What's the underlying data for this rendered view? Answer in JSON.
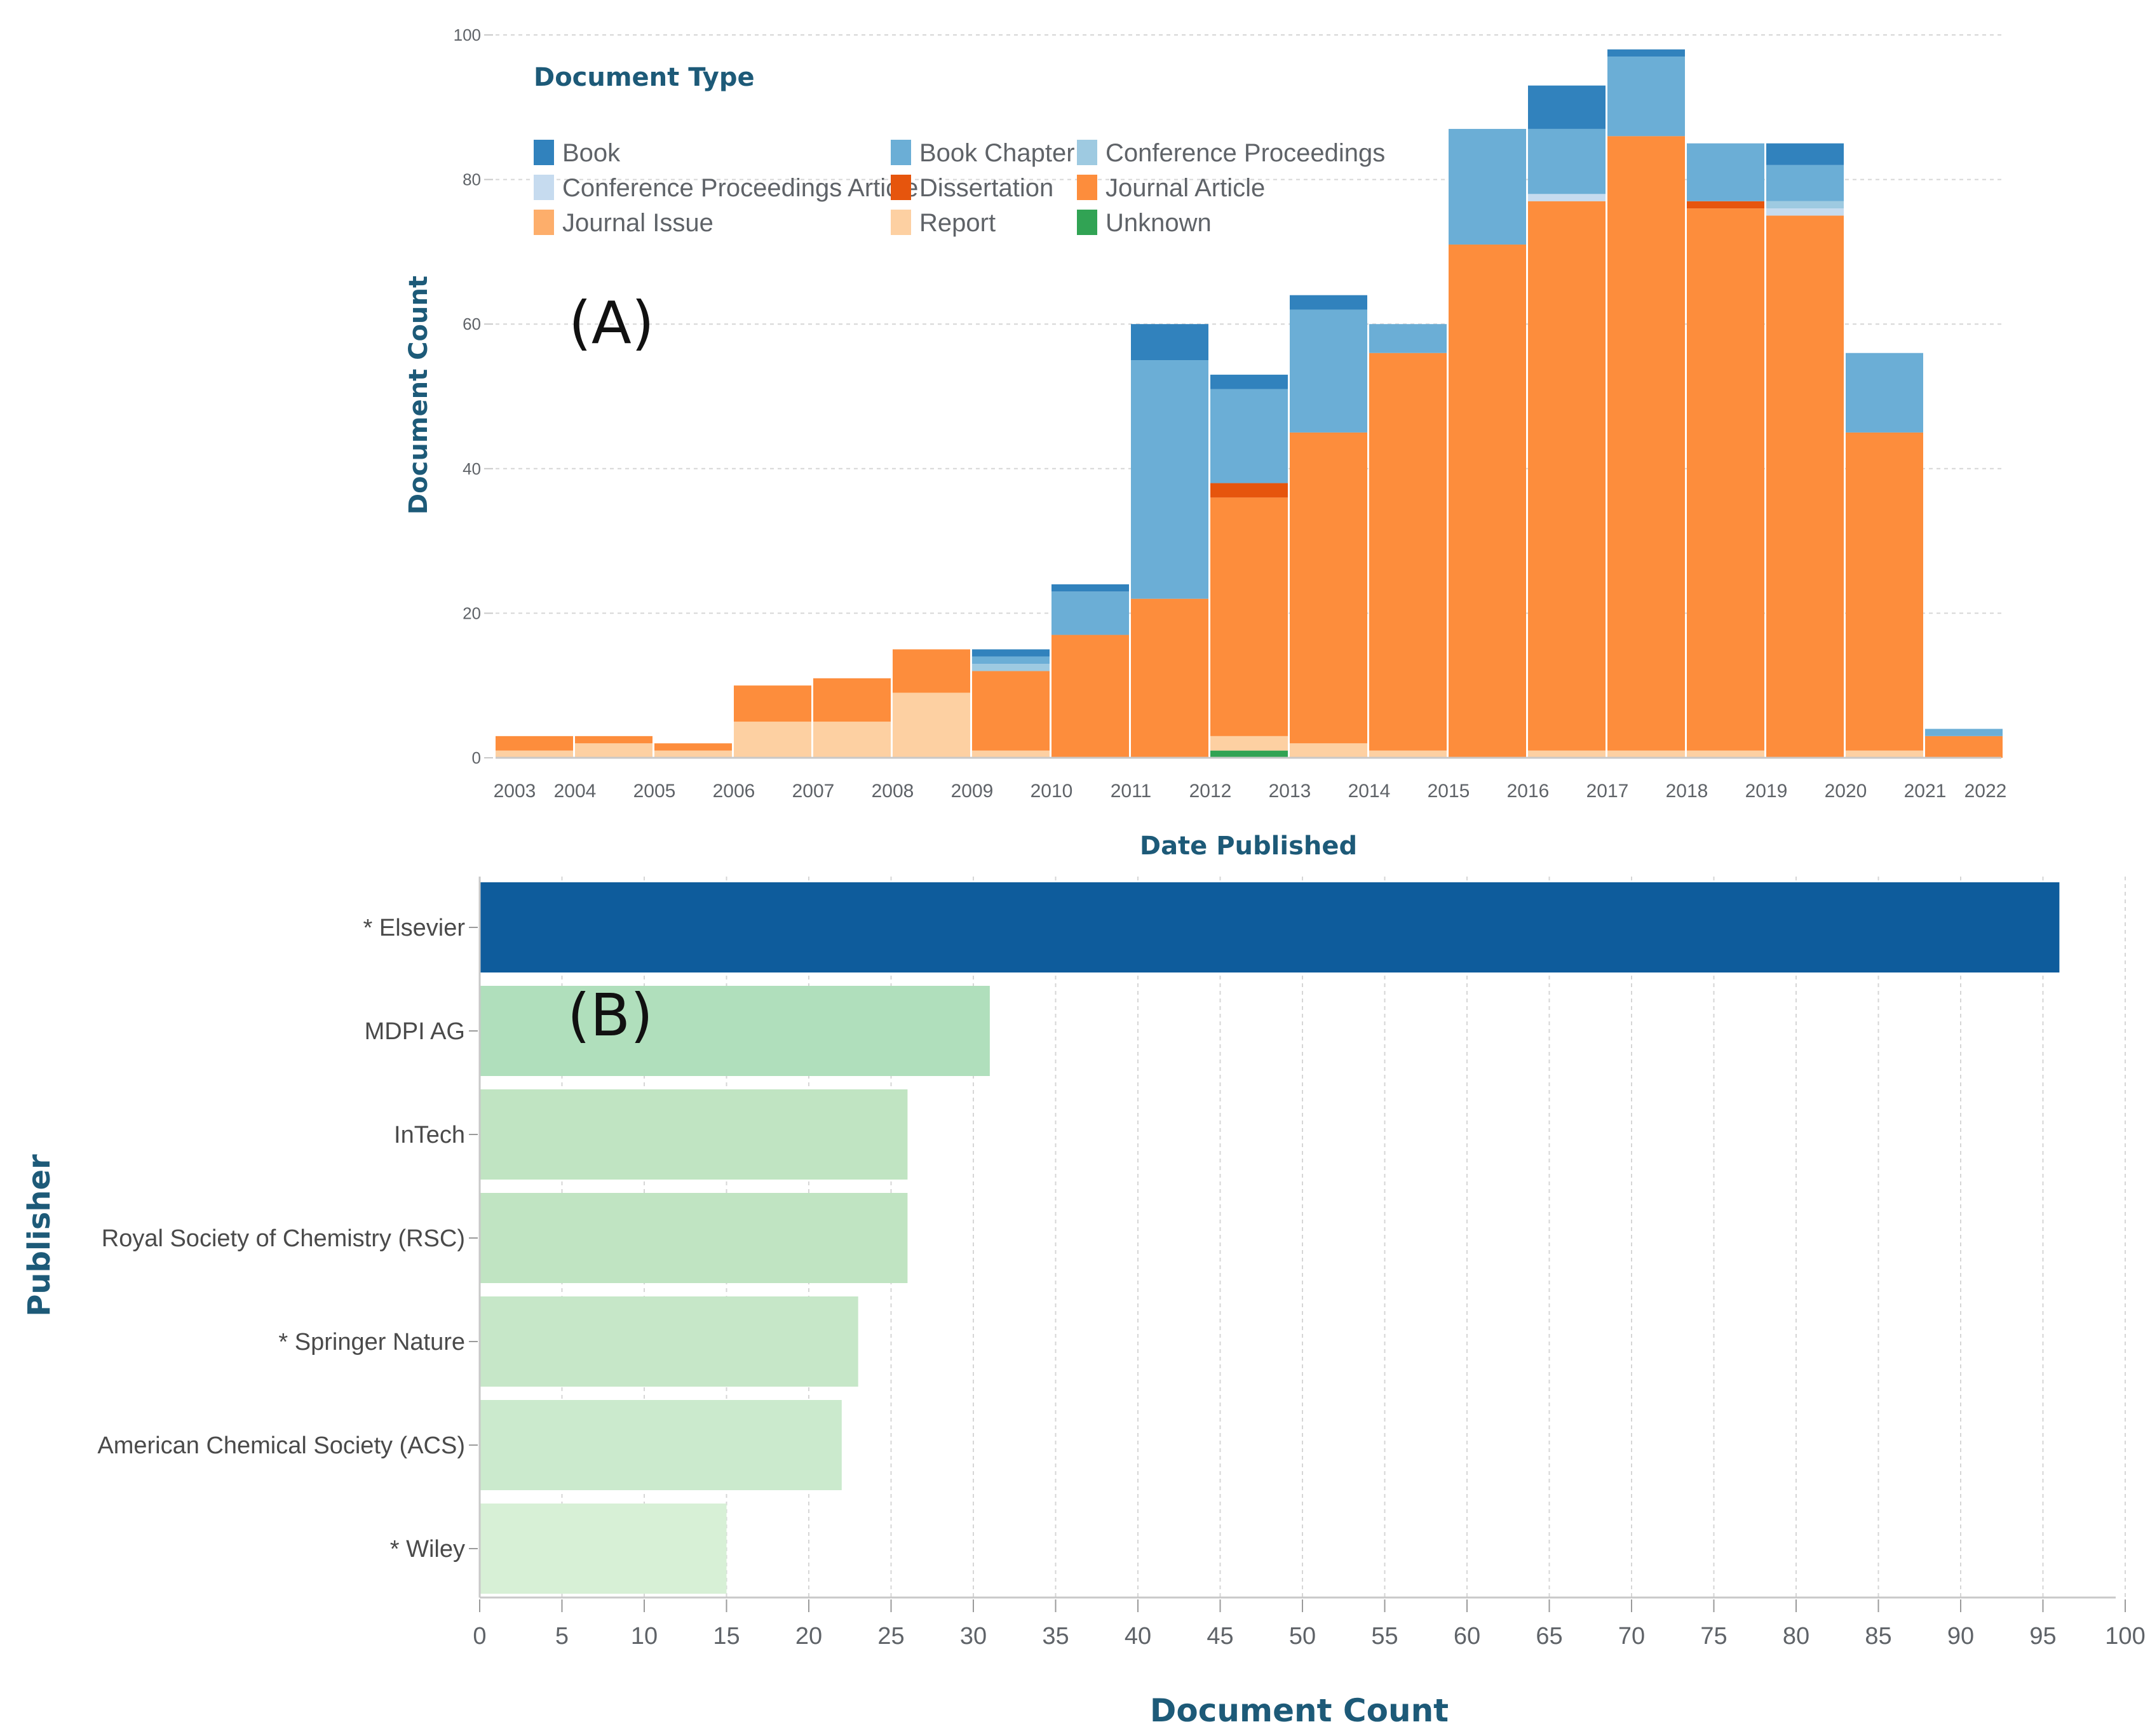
{
  "chart_data": [
    {
      "type": "bar",
      "stacked": true,
      "panel_label": "(A)",
      "legend_title": "Document Type",
      "xlabel": "Date Published",
      "ylabel": "Document Count",
      "ylim": [
        0,
        100
      ],
      "yticks": [
        0,
        20,
        40,
        60,
        80,
        100
      ],
      "x_tick_labels": [
        "2003",
        "2004",
        "2005",
        "2006",
        "2007",
        "2008",
        "2009",
        "2010",
        "2011",
        "2012",
        "2013",
        "2014",
        "2015",
        "2016",
        "2017",
        "2018",
        "2019",
        "2020",
        "2021",
        "2022"
      ],
      "bins": [
        "2003",
        "2004",
        "2005",
        "2006",
        "2007",
        "2008",
        "2009",
        "2010",
        "2011",
        "2012",
        "2013",
        "2014",
        "2015",
        "2016",
        "2017",
        "2018",
        "2019",
        "2020",
        "2021"
      ],
      "series": [
        {
          "name": "Unknown",
          "color": "#31a354",
          "values": [
            0,
            0,
            0,
            0,
            0,
            0,
            0,
            0,
            0,
            1,
            0,
            0,
            0,
            0,
            0,
            0,
            0,
            0,
            0
          ]
        },
        {
          "name": "Report",
          "color": "#fdd0a2",
          "values": [
            1,
            2,
            1,
            5,
            5,
            9,
            1,
            0,
            0,
            2,
            2,
            1,
            0,
            1,
            1,
            1,
            0,
            1,
            0
          ]
        },
        {
          "name": "Journal Issue",
          "color": "#fdae6b",
          "values": [
            0,
            0,
            0,
            0,
            0,
            0,
            0,
            0,
            0,
            0,
            0,
            0,
            0,
            0,
            0,
            0,
            0,
            0,
            0
          ]
        },
        {
          "name": "Journal Article",
          "color": "#fd8d3c",
          "values": [
            2,
            1,
            1,
            5,
            6,
            6,
            11,
            17,
            22,
            33,
            43,
            55,
            71,
            76,
            85,
            75,
            75,
            44,
            3
          ]
        },
        {
          "name": "Dissertation",
          "color": "#e6550d",
          "values": [
            0,
            0,
            0,
            0,
            0,
            0,
            0,
            0,
            0,
            2,
            0,
            0,
            0,
            0,
            0,
            1,
            0,
            0,
            0
          ]
        },
        {
          "name": "Conference Proceedings Article",
          "color": "#c6dbef",
          "values": [
            0,
            0,
            0,
            0,
            0,
            0,
            0,
            0,
            0,
            0,
            0,
            0,
            0,
            1,
            0,
            0,
            1,
            0,
            0
          ]
        },
        {
          "name": "Conference Proceedings",
          "color": "#9ecae1",
          "values": [
            0,
            0,
            0,
            0,
            0,
            0,
            1,
            0,
            0,
            0,
            0,
            0,
            0,
            0,
            0,
            0,
            1,
            0,
            0
          ]
        },
        {
          "name": "Book Chapter",
          "color": "#6baed6",
          "values": [
            0,
            0,
            0,
            0,
            0,
            0,
            1,
            6,
            33,
            13,
            17,
            4,
            16,
            9,
            11,
            8,
            5,
            11,
            1
          ]
        },
        {
          "name": "Book",
          "color": "#3182bd",
          "values": [
            0,
            0,
            0,
            0,
            0,
            0,
            1,
            1,
            5,
            2,
            2,
            0,
            0,
            6,
            1,
            0,
            3,
            0,
            0
          ]
        }
      ],
      "legend_order": [
        "Book",
        "Book Chapter",
        "Conference Proceedings",
        "Conference Proceedings Article",
        "Dissertation",
        "Journal Article",
        "Journal Issue",
        "Report",
        "Unknown"
      ]
    },
    {
      "type": "bar",
      "orientation": "horizontal",
      "panel_label": "(B)",
      "xlabel": "Document Count",
      "ylabel": "Publisher",
      "xlim": [
        0,
        100
      ],
      "xticks": [
        0,
        5,
        10,
        15,
        20,
        25,
        30,
        35,
        40,
        45,
        50,
        55,
        60,
        65,
        70,
        75,
        80,
        85,
        90,
        95,
        100
      ],
      "categories": [
        "* Elsevier",
        "MDPI AG",
        "InTech",
        "Royal Society of Chemistry (RSC)",
        "* Springer Nature",
        "American Chemical Society (ACS)",
        "* Wiley"
      ],
      "values": [
        96,
        31,
        26,
        26,
        23,
        22,
        15
      ],
      "colors": [
        "#0e5c9c",
        "#b0dfbc",
        "#c0e4c2",
        "#c0e4c2",
        "#c6e7c8",
        "#cbeacd",
        "#d7f0d6"
      ]
    }
  ]
}
